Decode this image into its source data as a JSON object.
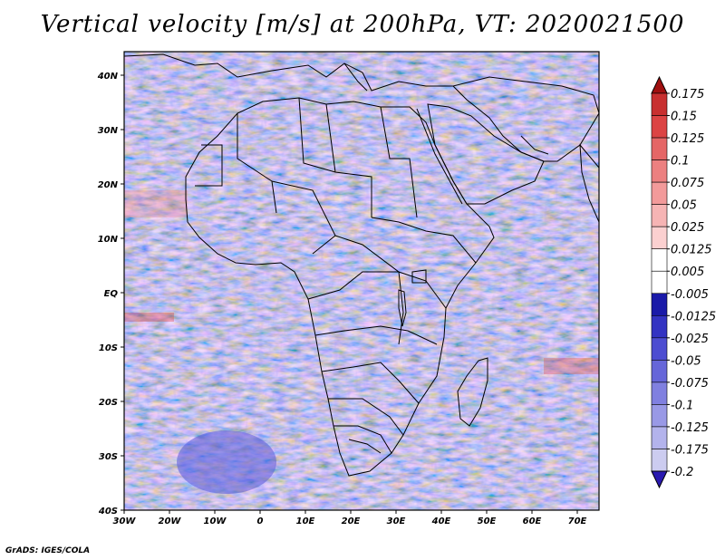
{
  "title": "Vertical velocity [m/s] at 200hPa, VT: 2020021500",
  "credit": "GrADS: IGES/COLA",
  "map": {
    "lon_labels": [
      "30W",
      "20W",
      "10W",
      "0",
      "10E",
      "20E",
      "30E",
      "40E",
      "50E",
      "60E",
      "70E"
    ],
    "lat_labels": [
      "40N",
      "30N",
      "20N",
      "10N",
      "EQ",
      "10S",
      "20S",
      "30S",
      "40S"
    ]
  },
  "colorbar": {
    "levels": [
      "0.175",
      "0.15",
      "0.125",
      "0.1",
      "0.075",
      "0.05",
      "0.025",
      "0.0125",
      "0.005",
      "-0.005",
      "-0.0125",
      "-0.025",
      "-0.05",
      "-0.075",
      "-0.1",
      "-0.125",
      "-0.175",
      "-0.2"
    ],
    "colors": [
      "#e8e8f8",
      "#ccccf0",
      "#b3b3ec",
      "#9999e6",
      "#8080e0",
      "#6666d9",
      "#4d4dd1",
      "#3333c2",
      "#1a1aa8",
      "#ffffff",
      "#ffffff",
      "#fbd0d0",
      "#f6b4b4",
      "#f29a9a",
      "#ec8080",
      "#e56666",
      "#dc4444",
      "#c83030",
      "#b01818"
    ],
    "top_color": "#a01010",
    "bottom_color": "#2a1ab0"
  }
}
